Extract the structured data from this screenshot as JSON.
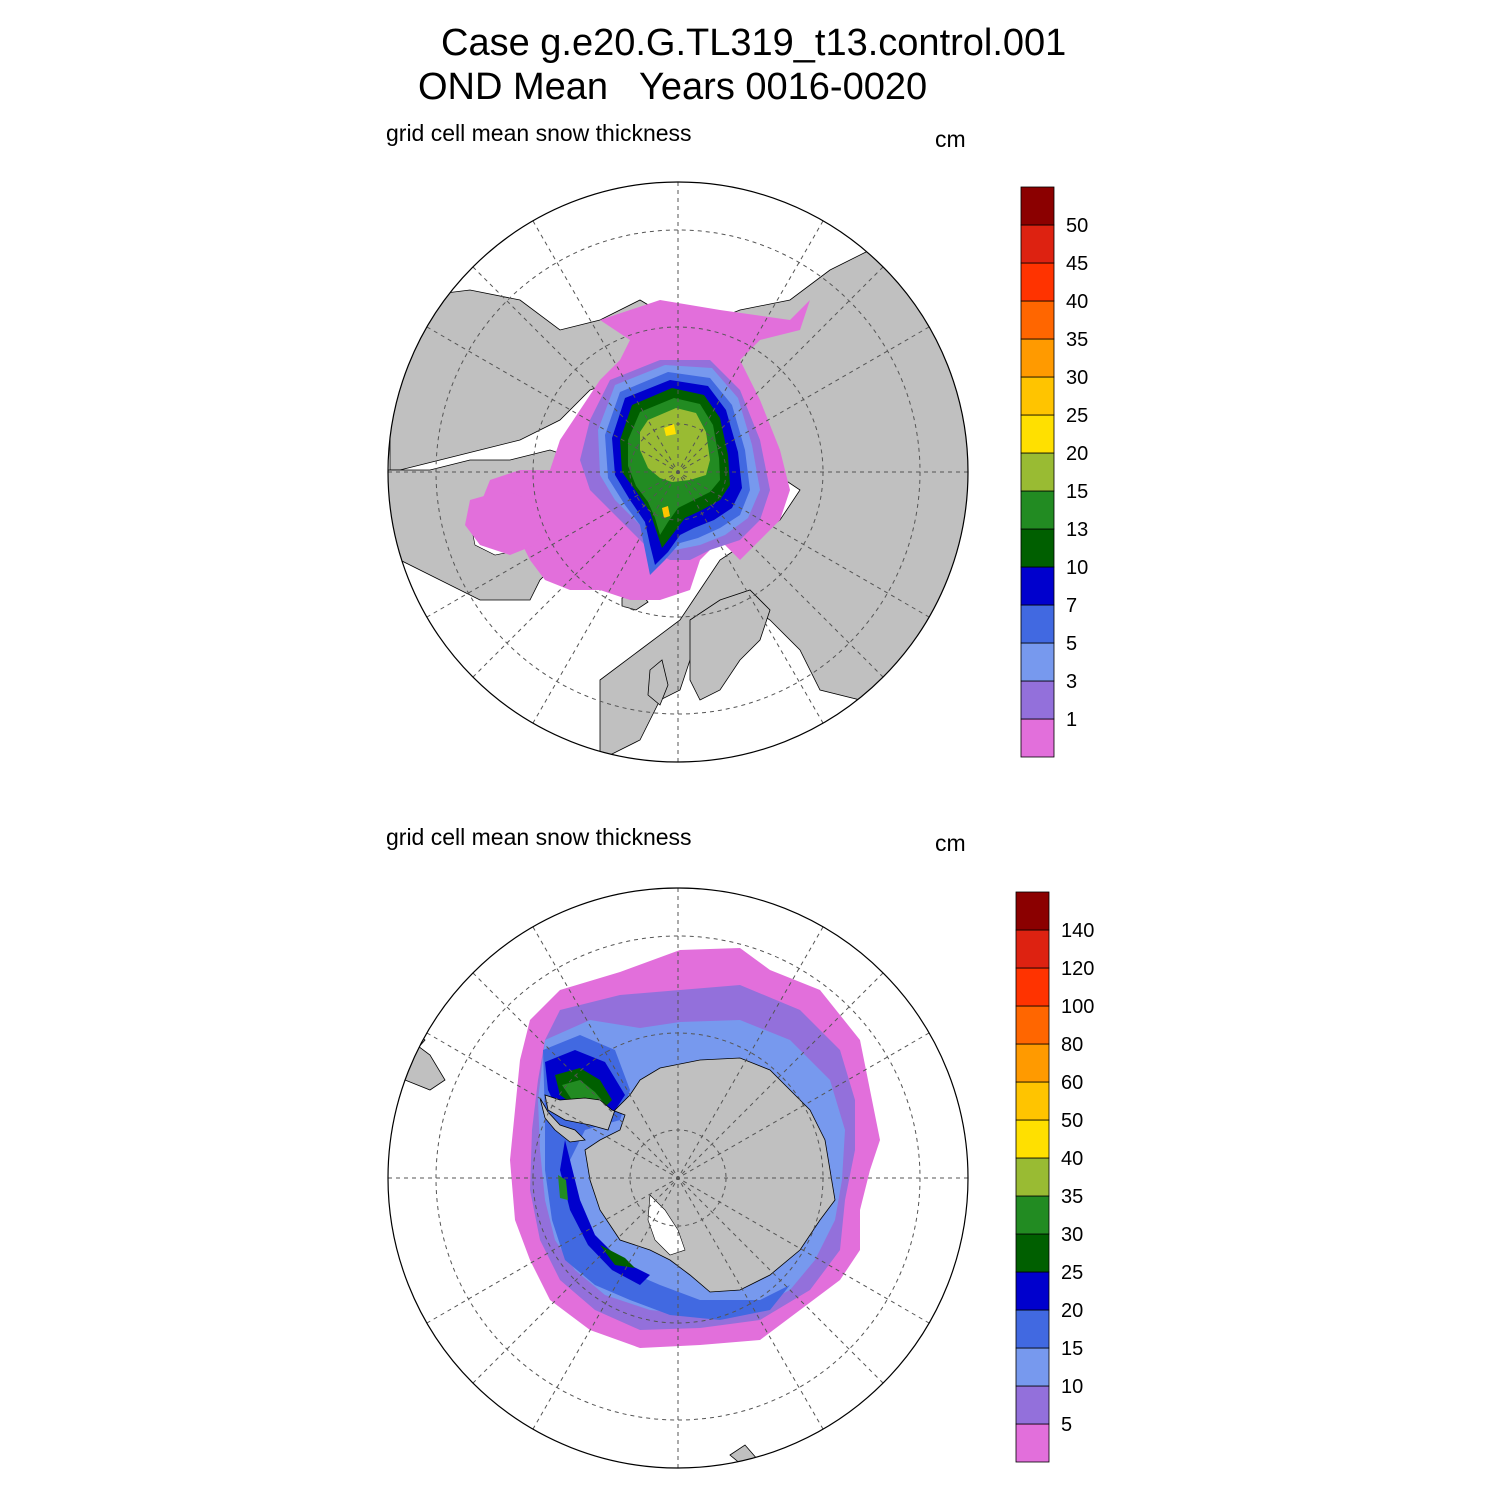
{
  "title": {
    "line1": "Case g.e20.G.TL319_t13.control.001",
    "line2": "OND Mean   Years 0016-0020"
  },
  "panels": [
    {
      "id": "north",
      "left_label": "grid cell mean snow thickness",
      "right_label": "cm",
      "hemisphere": "Northern",
      "colorbar": {
        "labels": [
          "1",
          "3",
          "5",
          "7",
          "10",
          "13",
          "15",
          "20",
          "25",
          "30",
          "35",
          "40",
          "45",
          "50"
        ],
        "colors": [
          "#e26fdb",
          "#9370db",
          "#7799ee",
          "#4169e1",
          "#0000cd",
          "#005f00",
          "#228b22",
          "#99bb33",
          "#ffe000",
          "#ffc400",
          "#ff9a00",
          "#ff6600",
          "#ff3300",
          "#dd2211",
          "#8b0000"
        ]
      }
    },
    {
      "id": "south",
      "left_label": "grid cell mean snow thickness",
      "right_label": "cm",
      "hemisphere": "Southern",
      "colorbar": {
        "labels": [
          "5",
          "10",
          "15",
          "20",
          "25",
          "30",
          "35",
          "40",
          "50",
          "60",
          "80",
          "100",
          "120",
          "140"
        ],
        "colors": [
          "#e26fdb",
          "#9370db",
          "#7799ee",
          "#4169e1",
          "#0000cd",
          "#005f00",
          "#228b22",
          "#99bb33",
          "#ffe000",
          "#ffc400",
          "#ff9a00",
          "#ff6600",
          "#ff3300",
          "#dd2211",
          "#8b0000"
        ]
      }
    }
  ],
  "colors": {
    "land": "#c0c0c0",
    "ocean": "#ffffff",
    "grid": "#555555"
  }
}
